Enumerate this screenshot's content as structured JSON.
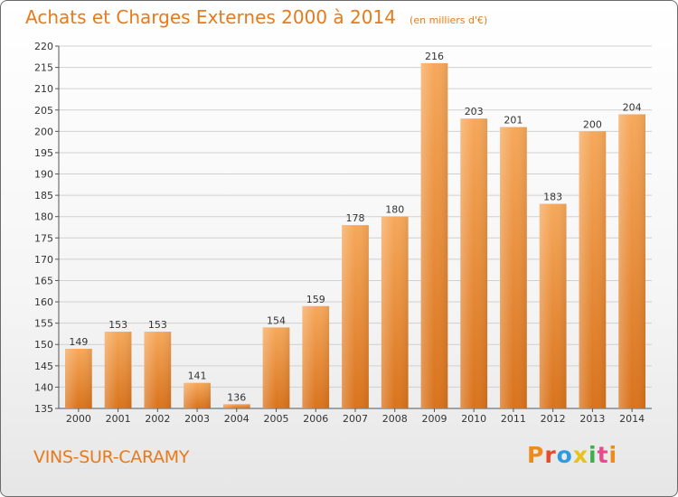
{
  "header": {
    "title": "Achats et Charges Externes 2000 à 2014",
    "subtitle": "(en milliers d'€)"
  },
  "footer": {
    "commune": "VINS-SUR-CARAMY",
    "logo_text": "Proxiti",
    "logo_colors": [
      "#f08a1c",
      "#e84a2c",
      "#2e9be0",
      "#e8c21a",
      "#3cb04a",
      "#e84a8c",
      "#f08a1c"
    ]
  },
  "chart_data": {
    "type": "bar",
    "title": "Achats et Charges Externes 2000 à 2014",
    "subtitle": "(en milliers d'€)",
    "xlabel": "",
    "ylabel": "",
    "categories": [
      "2000",
      "2001",
      "2002",
      "2003",
      "2004",
      "2005",
      "2006",
      "2007",
      "2008",
      "2009",
      "2010",
      "2011",
      "2012",
      "2013",
      "2014"
    ],
    "values": [
      149,
      153,
      153,
      141,
      136,
      154,
      159,
      178,
      180,
      216,
      203,
      201,
      183,
      200,
      204
    ],
    "ylim": [
      135,
      220
    ],
    "yticks": [
      135,
      140,
      145,
      150,
      155,
      160,
      165,
      170,
      175,
      180,
      185,
      190,
      195,
      200,
      205,
      210,
      215,
      220
    ],
    "grid": true,
    "legend": "none",
    "colors": {
      "bar_light": "#f6a85a",
      "bar_dark": "#d9731c",
      "grid": "#d0d0d0",
      "text": "#333333"
    }
  }
}
